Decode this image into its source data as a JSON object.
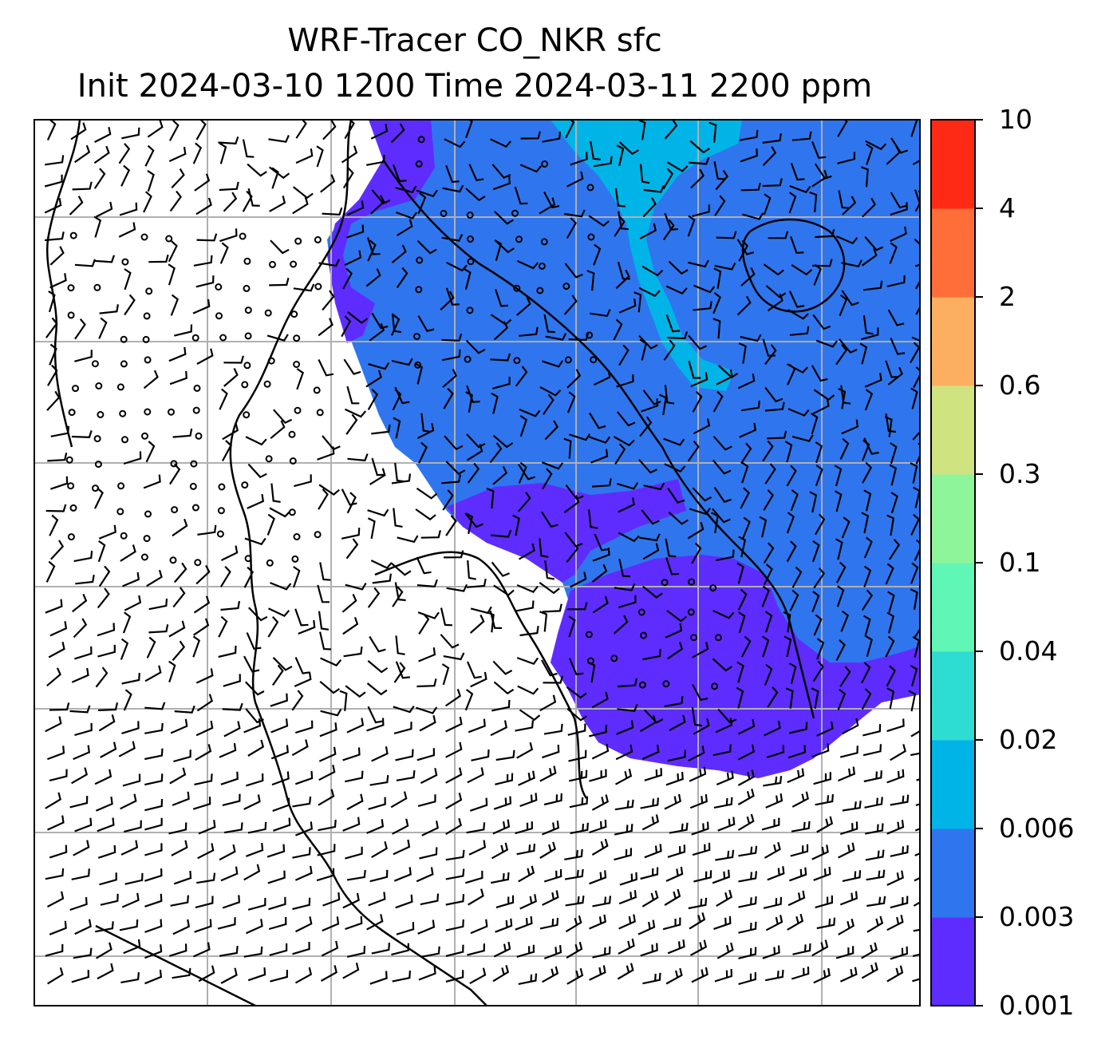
{
  "title": {
    "line1": "WRF-Tracer CO_NKR sfc",
    "line2": "Init 2024-03-10 1200 Time 2024-03-11 2200 ppm"
  },
  "colorbar": {
    "levels": [
      "0.001",
      "0.003",
      "0.006",
      "0.02",
      "0.04",
      "0.1",
      "0.3",
      "0.6",
      "2",
      "4",
      "10"
    ],
    "colors": [
      "#5f2cff",
      "#2f76ee",
      "#00b4e7",
      "#2edcd1",
      "#5ff6b6",
      "#8ff59a",
      "#cfe381",
      "#fcaf60",
      "#ff6d38",
      "#fe2a15"
    ]
  },
  "map": {
    "layers": [
      "co-tracer-shading",
      "gridlines",
      "coastlines",
      "wind-barbs"
    ]
  }
}
